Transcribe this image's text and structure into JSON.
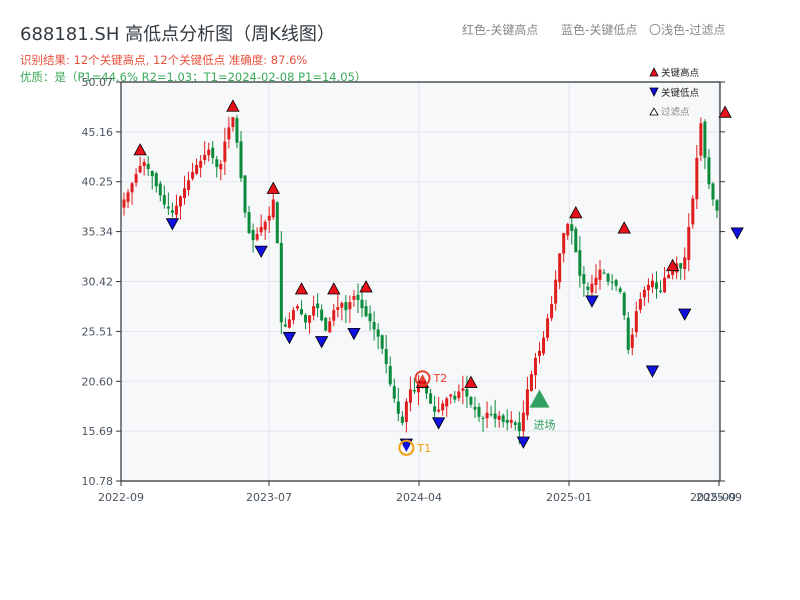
{
  "header": {
    "title": "688181.SH 高低点分析图（周K线图）",
    "legend_red": "红色-关键高点",
    "legend_blue": "蓝色-关键低点",
    "legend_light": "〇浅色-过滤点",
    "summary": "识别结果: 12个关键高点, 12个关键低点  准确度: 87.6%",
    "quality": "优质：是（P1=44.6%  R2=1.03；T1=2024-02-08 P1=14.05）"
  },
  "colors": {
    "up": "#e01e1e",
    "down": "#0a8a3a",
    "high_marker": "#e8101a",
    "low_marker": "#1010e0",
    "t1": "#f0a010",
    "t2": "#e84030",
    "field": "#30a060",
    "plot_bg": "#f7f8fa"
  },
  "chart_data": {
    "type": "candlestick",
    "xlabel": "",
    "ylabel": "",
    "ylim": [
      10.78,
      50.07
    ],
    "y_ticks": [
      "10.78",
      "15.69",
      "20.60",
      "25.51",
      "30.42",
      "35.34",
      "40.25",
      "45.16",
      "50.07"
    ],
    "x_ticks": [
      "2022-09",
      "2023-07",
      "2024-04",
      "2025-01",
      "2025-09"
    ],
    "x_ticks_extra": "2025-09",
    "grid": true,
    "legend": {
      "placement": "top-right",
      "items": [
        "关键高点",
        "关键低点",
        "过滤点"
      ]
    },
    "series_close": [
      38.5,
      39.2,
      40.1,
      41.0,
      41.8,
      42.2,
      41.5,
      40.8,
      39.8,
      38.9,
      38.0,
      37.6,
      37.2,
      37.9,
      38.8,
      39.6,
      40.4,
      41.2,
      41.9,
      42.3,
      42.9,
      43.4,
      42.6,
      41.7,
      42.0,
      44.2,
      45.6,
      46.6,
      44.1,
      40.6,
      37.2,
      35.2,
      34.5,
      35.1,
      35.8,
      36.3,
      36.9,
      38.5,
      34.2,
      26.4,
      26.0,
      26.7,
      27.6,
      28.0,
      27.2,
      26.4,
      27.1,
      28.0,
      27.8,
      26.6,
      25.6,
      26.5,
      27.6,
      27.9,
      28.3,
      27.6,
      28.4,
      29.0,
      28.6,
      27.8,
      27.0,
      26.5,
      25.7,
      25.0,
      23.8,
      22.3,
      20.3,
      18.9,
      17.4,
      16.5,
      18.6,
      19.8,
      19.6,
      20.6,
      20.1,
      19.4,
      18.4,
      17.6,
      17.8,
      18.4,
      18.9,
      19.3,
      18.8,
      19.6,
      19.9,
      19.1,
      18.3,
      17.8,
      17.1,
      16.9,
      17.5,
      17.3,
      16.9,
      17.2,
      16.6,
      16.5,
      16.8,
      16.3,
      15.7,
      17.5,
      19.8,
      21.3,
      22.9,
      23.6,
      24.9,
      26.8,
      28.2,
      30.6,
      33.2,
      35.2,
      36.1,
      35.4,
      33.3,
      31.0,
      30.2,
      29.6,
      30.2,
      30.8,
      31.6,
      31.3,
      30.4,
      30.3,
      30.0,
      29.4,
      27.1,
      23.7,
      25.2,
      27.5,
      28.7,
      29.6,
      30.1,
      30.5,
      29.7,
      29.4,
      30.8,
      31.1,
      31.6,
      32.2,
      31.7,
      32.8,
      35.8,
      38.6,
      42.6,
      46.0,
      42.6,
      40.0,
      38.5,
      37.4
    ],
    "dates_span": [
      "2022-09",
      "2025-09"
    ],
    "key_highs": [
      {
        "idx": 4,
        "value": 42.3
      },
      {
        "idx": 27,
        "value": 46.6
      },
      {
        "idx": 37,
        "value": 38.5
      },
      {
        "idx": 44,
        "value": 28.6
      },
      {
        "idx": 52,
        "value": 28.6
      },
      {
        "idx": 60,
        "value": 28.8
      },
      {
        "idx": 74,
        "value": 19.4
      },
      {
        "idx": 86,
        "value": 19.4
      },
      {
        "idx": 112,
        "value": 36.1
      },
      {
        "idx": 124,
        "value": 34.6
      },
      {
        "idx": 136,
        "value": 30.9
      },
      {
        "idx": 149,
        "value": 46.0
      }
    ],
    "key_lows": [
      {
        "idx": 12,
        "value": 37.2
      },
      {
        "idx": 34,
        "value": 34.5
      },
      {
        "idx": 41,
        "value": 26.0
      },
      {
        "idx": 49,
        "value": 25.6
      },
      {
        "idx": 57,
        "value": 26.4
      },
      {
        "idx": 70,
        "value": 15.5
      },
      {
        "idx": 78,
        "value": 17.6
      },
      {
        "idx": 99,
        "value": 15.7
      },
      {
        "idx": 116,
        "value": 29.6
      },
      {
        "idx": 131,
        "value": 22.7
      },
      {
        "idx": 139,
        "value": 28.3
      },
      {
        "idx": 152,
        "value": 36.3
      }
    ],
    "annotations": [
      {
        "label": "T1",
        "idx": 70,
        "value": 14.05
      },
      {
        "label": "T2",
        "idx": 74,
        "value": 20.9
      },
      {
        "label": "进场",
        "idx": 103,
        "value": 18.6
      }
    ]
  }
}
